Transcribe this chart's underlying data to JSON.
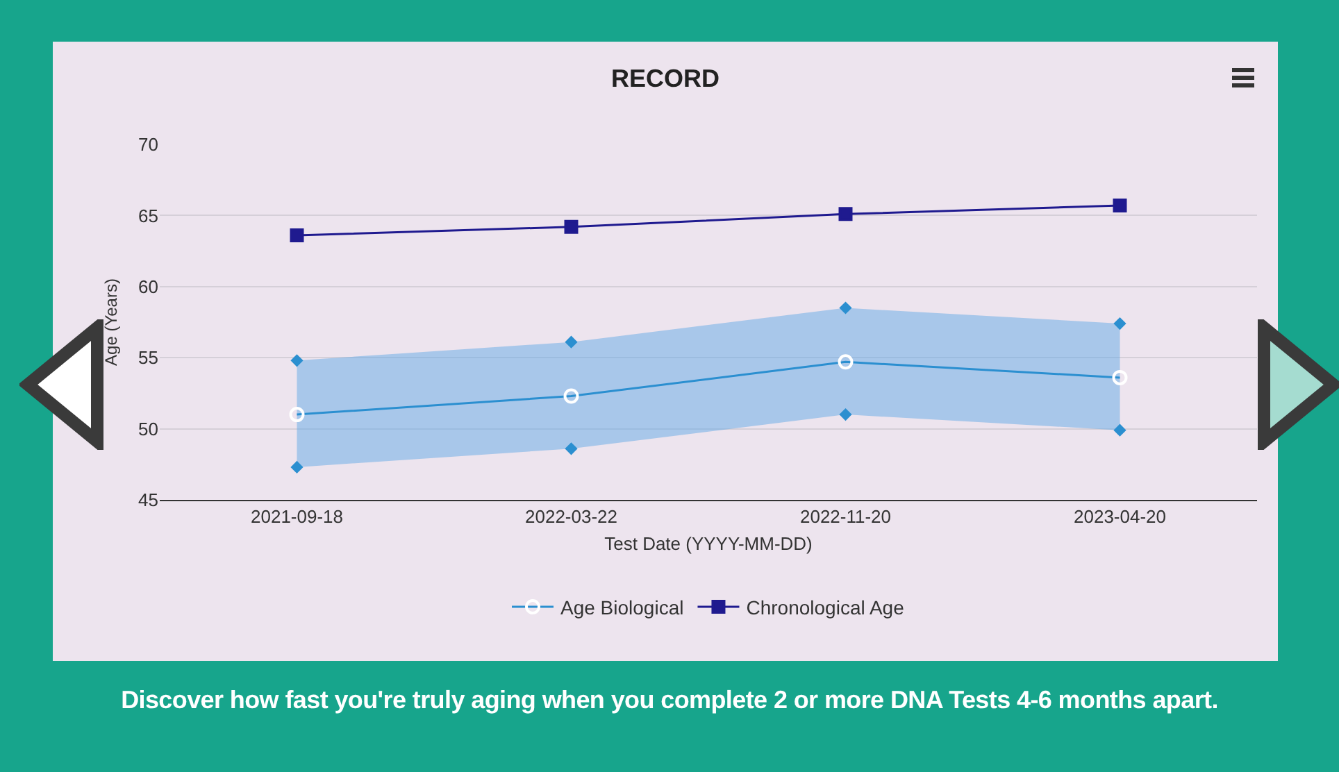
{
  "chart_data": {
    "type": "line",
    "title": "RECORD",
    "xlabel": "Test Date (YYYY-MM-DD)",
    "ylabel": "Age (Years)",
    "categories": [
      "2021-09-18",
      "2022-03-22",
      "2022-11-20",
      "2023-04-20"
    ],
    "series": [
      {
        "name": "Age Biological",
        "color": "#2b8fd0",
        "values": [
          51.0,
          52.3,
          54.7,
          53.6
        ],
        "lower": [
          47.3,
          48.6,
          51.0,
          49.9
        ],
        "upper": [
          54.8,
          56.1,
          58.5,
          57.4
        ],
        "marker": "circle"
      },
      {
        "name": "Chronological Age",
        "color": "#1f1a8f",
        "values": [
          63.6,
          64.2,
          65.1,
          65.7
        ],
        "marker": "square"
      },
      {
        "type": "scatter",
        "color": "#2b8fd0",
        "values": [
          47.3,
          48.6,
          51.0,
          49.9
        ],
        "marker": "diamond"
      },
      {
        "type": "scatter",
        "color": "#2b8fd0",
        "values": [
          54.8,
          56.1,
          58.5,
          57.4
        ],
        "marker": "diamond"
      }
    ],
    "ylim": [
      45,
      70
    ],
    "yticks": [
      45,
      50,
      55,
      60,
      65,
      70
    ],
    "grid": "y",
    "legend": "bottom",
    "annotations": [
      "Discover how fast you're truly aging when you complete 2 or more DNA Tests 4-6 months apart."
    ]
  }
}
